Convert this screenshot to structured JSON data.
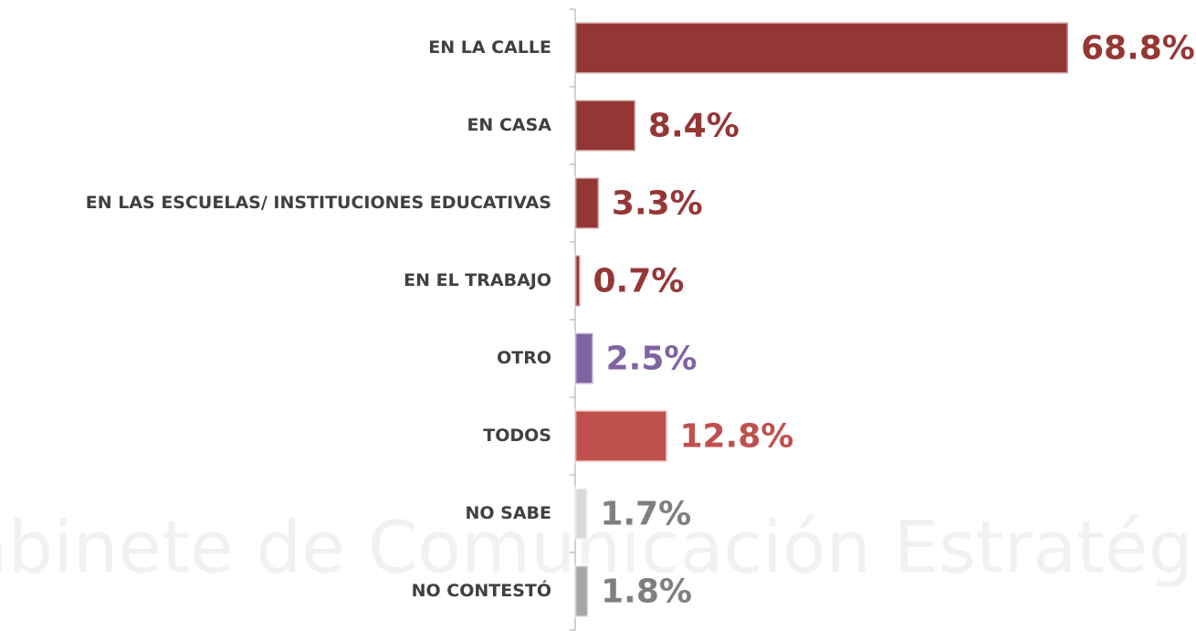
{
  "chart_data": {
    "type": "hbar",
    "categories": [
      "EN LA CALLE",
      "EN CASA",
      "EN LAS ESCUELAS/ INSTITUCIONES EDUCATIVAS",
      "EN EL TRABAJO",
      "OTRO",
      "TODOS",
      "NO SABE",
      "NO CONTESTÓ"
    ],
    "values": [
      68.8,
      8.4,
      3.3,
      0.7,
      2.5,
      12.8,
      1.7,
      1.8
    ],
    "value_labels": [
      "68.8%",
      "8.4%",
      "3.3%",
      "0.7%",
      "2.5%",
      "12.8%",
      "1.7%",
      "1.8%"
    ],
    "colors": [
      "#943634",
      "#943634",
      "#943634",
      "#943634",
      "#8064a2",
      "#c0504d",
      "#d9d9d9",
      "#a6a6a6"
    ],
    "label_colors": [
      "#953735",
      "#953735",
      "#953735",
      "#953735",
      "#8064a2",
      "#c0504d",
      "#7f7f7f",
      "#7f7f7f"
    ],
    "xlim": [
      0,
      70
    ],
    "watermark": "Gabinete de Comunicación Estratégica"
  }
}
